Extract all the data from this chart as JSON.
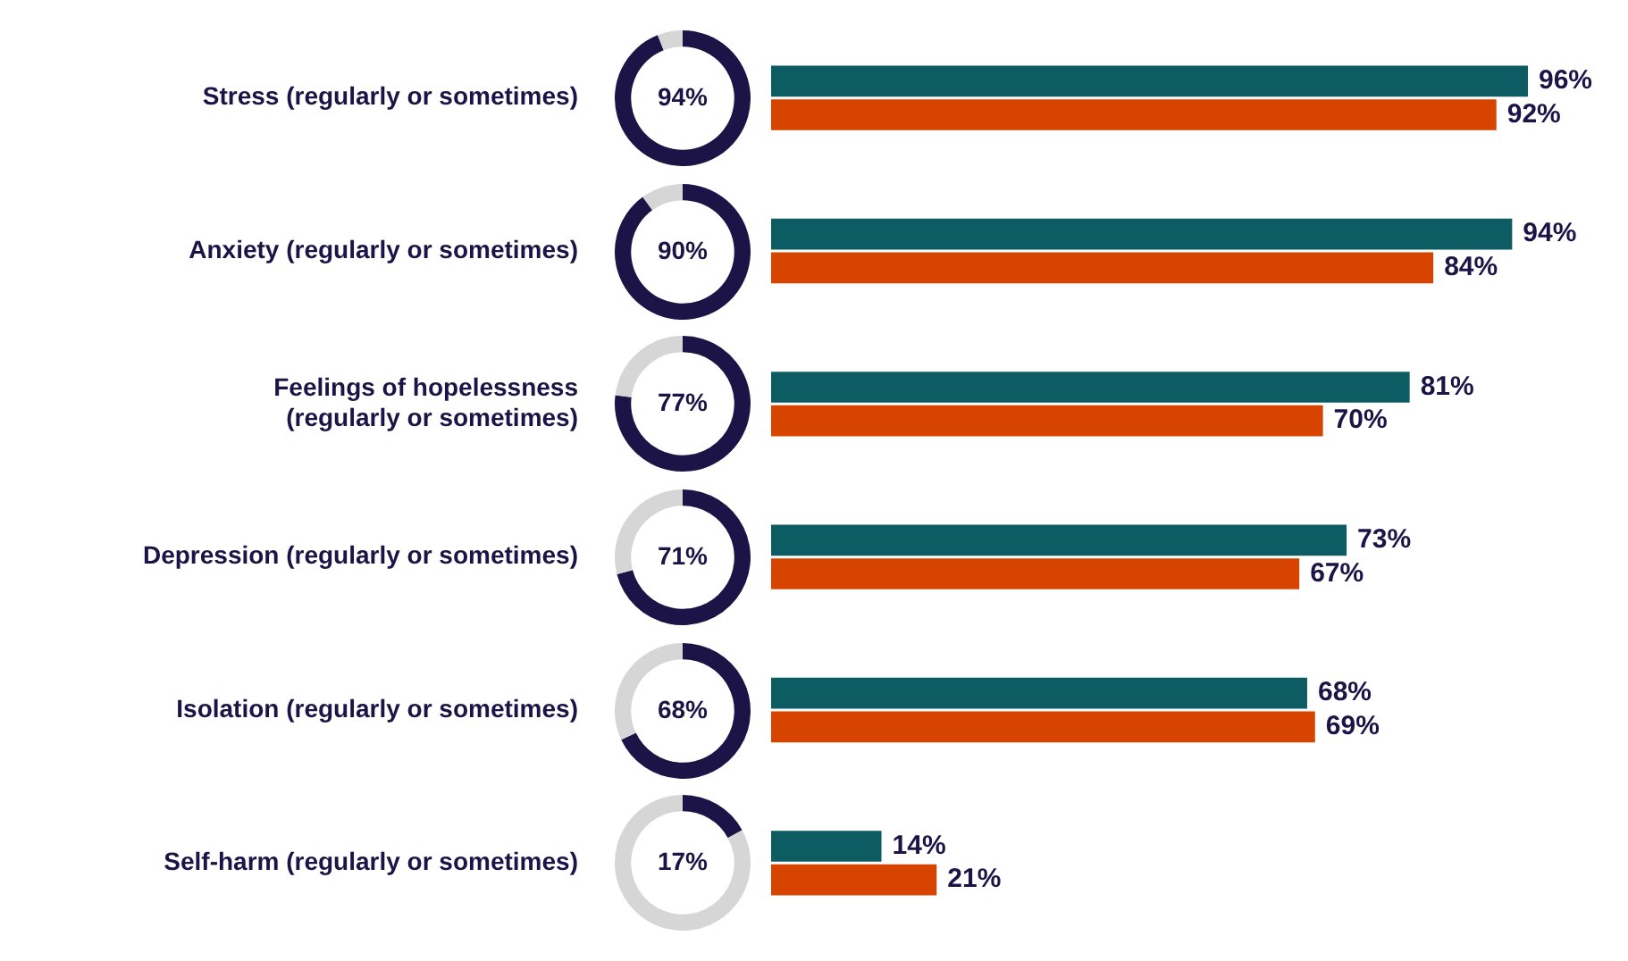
{
  "chart_data": [
    {
      "type": "bar",
      "orientation": "horizontal",
      "categories": [
        "Stress (regularly or sometimes)",
        "Anxiety (regularly or sometimes)",
        "Feelings of hopelessness (regularly or sometimes)",
        "Depression (regularly or sometimes)",
        "Isolation (regularly or sometimes)",
        "Self-harm (regularly or sometimes)"
      ],
      "series": [
        {
          "color": "#0d5c63",
          "values": [
            96,
            94,
            81,
            73,
            68,
            14
          ],
          "value_labels": [
            "96%",
            "94%",
            "81%",
            "73%",
            "68%",
            "14%"
          ]
        },
        {
          "color": "#d64400",
          "values": [
            92,
            84,
            70,
            67,
            69,
            21
          ],
          "value_labels": [
            "92%",
            "84%",
            "70%",
            "67%",
            "69%",
            "21%"
          ]
        }
      ],
      "grid": false,
      "legend": false
    },
    {
      "type": "donut",
      "categories": [
        null,
        null
      ],
      "values": [
        94,
        6
      ],
      "colors": [
        "#1c1446",
        "#d6d6d6"
      ],
      "value_labels": [
        "94%",
        null
      ]
    },
    {
      "type": "donut",
      "categories": [
        null,
        null
      ],
      "values": [
        90,
        10
      ],
      "colors": [
        "#1c1446",
        "#d6d6d6"
      ],
      "value_labels": [
        "90%",
        null
      ]
    },
    {
      "type": "donut",
      "categories": [
        null,
        null
      ],
      "values": [
        77,
        23
      ],
      "colors": [
        "#1c1446",
        "#d6d6d6"
      ],
      "value_labels": [
        "77%",
        null
      ]
    },
    {
      "type": "donut",
      "categories": [
        null,
        null
      ],
      "values": [
        71,
        29
      ],
      "colors": [
        "#1c1446",
        "#d6d6d6"
      ],
      "value_labels": [
        "71%",
        null
      ]
    },
    {
      "type": "donut",
      "categories": [
        null,
        null
      ],
      "values": [
        68,
        32
      ],
      "colors": [
        "#1c1446",
        "#d6d6d6"
      ],
      "value_labels": [
        "68%",
        null
      ]
    },
    {
      "type": "donut",
      "categories": [
        null,
        null
      ],
      "values": [
        17,
        83
      ],
      "colors": [
        "#1c1446",
        "#d6d6d6"
      ],
      "value_labels": [
        "17%",
        null
      ]
    }
  ]
}
